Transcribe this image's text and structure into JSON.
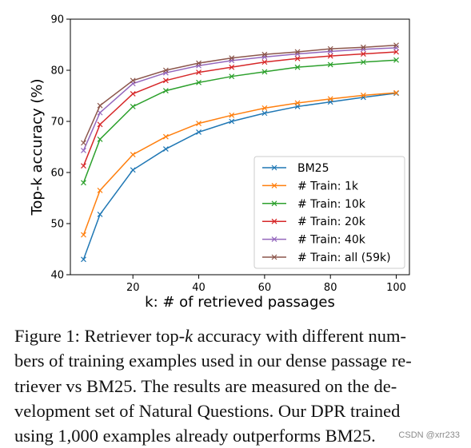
{
  "chart_data": {
    "type": "line",
    "xlabel": "k: # of retrieved passages",
    "ylabel": "Top-k accuracy (%)",
    "xlim": [
      1,
      104
    ],
    "ylim": [
      40,
      90
    ],
    "x_ticks": [
      20,
      40,
      60,
      80,
      100
    ],
    "y_ticks": [
      40,
      50,
      60,
      70,
      80,
      90
    ],
    "grid": false,
    "legend_position": "lower-right",
    "marker": "x",
    "x": [
      5,
      10,
      20,
      30,
      40,
      50,
      60,
      70,
      80,
      90,
      100
    ],
    "series": [
      {
        "name": "BM25",
        "color": "#1f77b4",
        "values": [
          43.0,
          51.8,
          60.5,
          64.6,
          67.9,
          70.0,
          71.6,
          72.9,
          73.8,
          74.7,
          75.5
        ]
      },
      {
        "name": "# Train: 1k",
        "color": "#ff7f0e",
        "values": [
          47.8,
          56.5,
          63.5,
          67.0,
          69.6,
          71.2,
          72.6,
          73.6,
          74.4,
          75.1,
          75.6
        ]
      },
      {
        "name": "# Train: 10k",
        "color": "#2ca02c",
        "values": [
          58.0,
          66.5,
          72.9,
          76.0,
          77.6,
          78.8,
          79.7,
          80.6,
          81.1,
          81.6,
          82.0
        ]
      },
      {
        "name": "# Train: 20k",
        "color": "#d62728",
        "values": [
          61.3,
          69.4,
          75.4,
          78.0,
          79.6,
          80.6,
          81.6,
          82.3,
          82.8,
          83.2,
          83.6
        ]
      },
      {
        "name": "# Train: 40k",
        "color": "#9467bd",
        "values": [
          64.3,
          71.7,
          77.4,
          79.5,
          80.9,
          81.9,
          82.6,
          83.2,
          83.7,
          84.1,
          84.4
        ]
      },
      {
        "name": "# Train: all (59k)",
        "color": "#8c564b",
        "values": [
          65.8,
          73.1,
          78.0,
          80.0,
          81.4,
          82.4,
          83.1,
          83.6,
          84.2,
          84.5,
          84.9
        ]
      }
    ]
  },
  "caption": {
    "line1_pre": "Figure 1: Retriever top-",
    "line1_k": "k",
    "line1_post": " accuracy with different num-",
    "line2": "bers of training examples used in our dense passage re-",
    "line3": "triever vs BM25.  The results are measured on the de-",
    "line4": "velopment set of Natural Questions.  Our DPR trained",
    "line5": "using 1,000 examples already outperforms BM25."
  },
  "watermark": "CSDN @xrr233"
}
